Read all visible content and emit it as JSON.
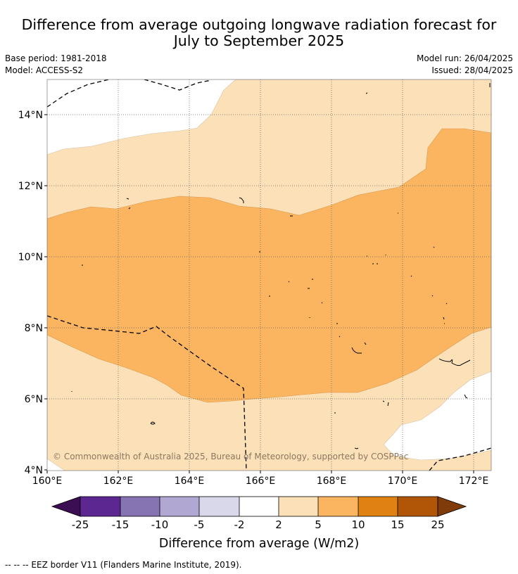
{
  "title_line1": "Difference from average outgoing longwave radiation forecast for",
  "title_line2": "July to September 2025",
  "base_period": "Base period: 1981-2018",
  "model": "Model: ACCESS-S2",
  "model_run": "Model run: 26/04/2025",
  "issued": "Issued: 28/04/2025",
  "map": {
    "lat_labels": [
      "14°N",
      "12°N",
      "10°N",
      "8°N",
      "6°N",
      "4°N"
    ],
    "lon_labels": [
      "160°E",
      "162°E",
      "164°E",
      "166°E",
      "168°E",
      "170°E",
      "172°E"
    ],
    "copyright": "© Commonwealth of Australia 2025, Bureau of Meteorology, supported by COSPPac",
    "colors": {
      "light": "#fce0b8",
      "medium": "#fbb561",
      "white": "#ffffff"
    }
  },
  "colorbar": {
    "ticks": [
      "-25",
      "-15",
      "-10",
      "-5",
      "-2",
      "2",
      "5",
      "10",
      "15",
      "25"
    ],
    "colors": [
      "#3b0d52",
      "#5c2791",
      "#8573b2",
      "#b1a7d3",
      "#d8d8ea",
      "#ffffff",
      "#fce0b8",
      "#fbb561",
      "#e08213",
      "#b15606",
      "#7f3c0a"
    ],
    "label": "Difference from average (W/m2)"
  },
  "footer": "--  --  -- EEZ border V11 (Flanders Marine Institute, 2019)."
}
